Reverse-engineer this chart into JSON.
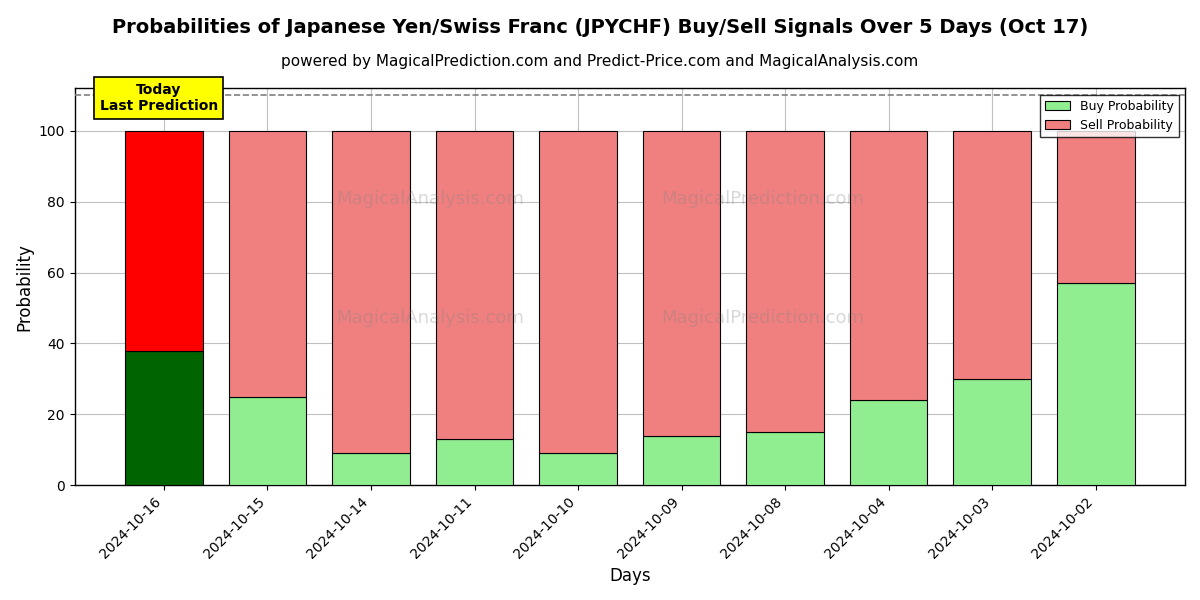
{
  "title": "Probabilities of Japanese Yen/Swiss Franc (JPYCHF) Buy/Sell Signals Over 5 Days (Oct 17)",
  "subtitle": "powered by MagicalPrediction.com and Predict-Price.com and MagicalAnalysis.com",
  "xlabel": "Days",
  "ylabel": "Probability",
  "watermark_row1": [
    "MagicalAnalysis.com",
    "MagicalPrediction.com"
  ],
  "watermark_row2": [
    "MagicalAnalysis.com",
    "MagicalPrediction.com"
  ],
  "categories": [
    "2024-10-16",
    "2024-10-15",
    "2024-10-14",
    "2024-10-11",
    "2024-10-10",
    "2024-10-09",
    "2024-10-08",
    "2024-10-04",
    "2024-10-03",
    "2024-10-02"
  ],
  "buy_values": [
    38,
    25,
    9,
    13,
    9,
    14,
    15,
    24,
    30,
    57
  ],
  "sell_values": [
    62,
    75,
    91,
    87,
    91,
    86,
    85,
    76,
    70,
    43
  ],
  "today_index": 0,
  "today_buy_color": "#006400",
  "today_sell_color": "#FF0000",
  "other_buy_color": "#90EE90",
  "other_sell_color": "#F08080",
  "today_label_bg": "#FFFF00",
  "today_label_text": "Today\nLast Prediction",
  "ylim": [
    0,
    112
  ],
  "yticks": [
    0,
    20,
    40,
    60,
    80,
    100
  ],
  "dashed_line_y": 110,
  "legend_buy_label": "Buy Probability",
  "legend_sell_label": "Sell Probability",
  "title_fontsize": 14,
  "subtitle_fontsize": 11,
  "axis_label_fontsize": 12,
  "tick_fontsize": 10,
  "bar_width": 0.75,
  "edge_color": "#000000",
  "grid_color": "#C0C0C0",
  "background_color": "#FFFFFF"
}
